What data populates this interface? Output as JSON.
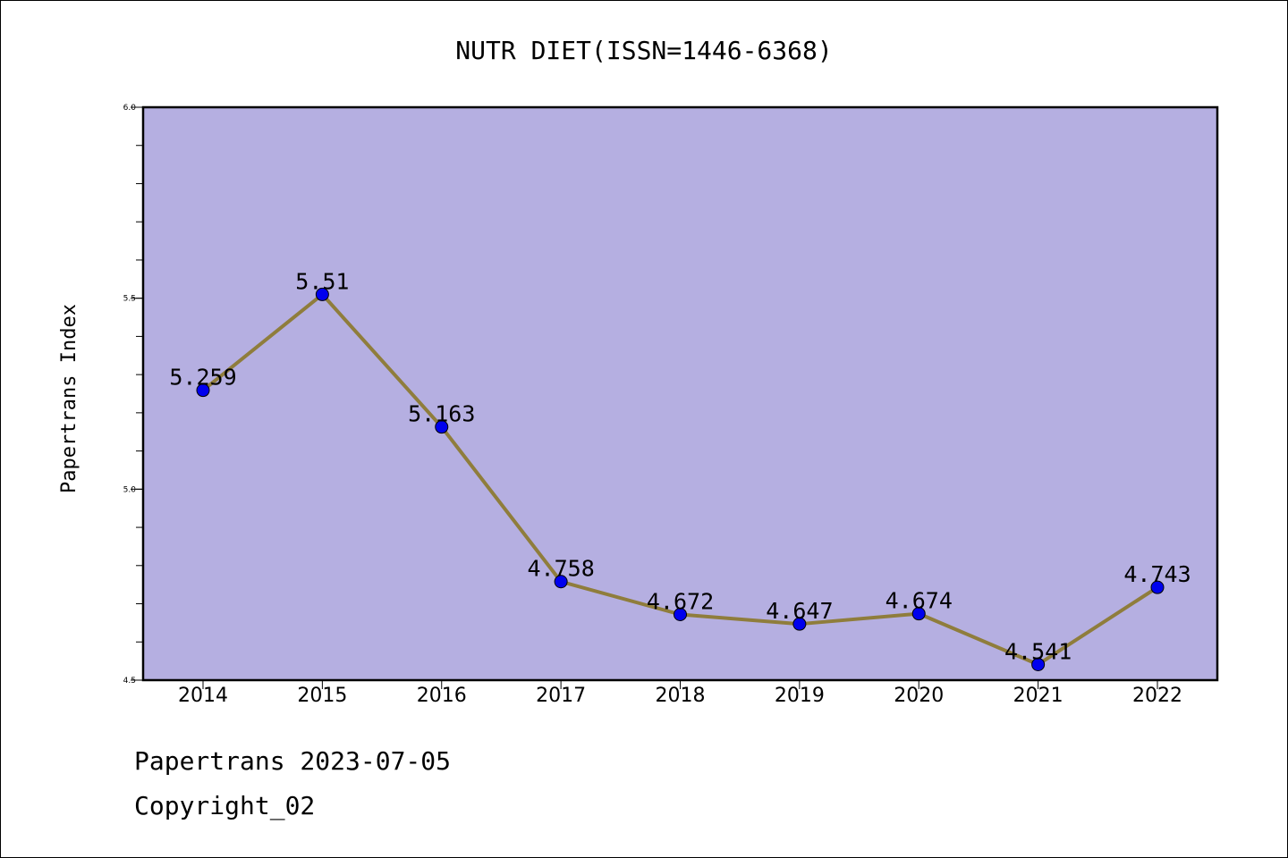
{
  "chart_data": {
    "type": "line",
    "title": "NUTR DIET(ISSN=1446-6368)",
    "ylabel": "Papertrans Index",
    "xlabel": "",
    "categories": [
      "2014",
      "2015",
      "2016",
      "2017",
      "2018",
      "2019",
      "2020",
      "2021",
      "2022"
    ],
    "values": [
      5.259,
      5.51,
      5.163,
      4.758,
      4.672,
      4.647,
      4.674,
      4.541,
      4.743
    ],
    "value_labels": [
      "5.259",
      "5.51",
      "5.163",
      "4.758",
      "4.672",
      "4.647",
      "4.674",
      "4.541",
      "4.743"
    ],
    "ylim": [
      4.5,
      6.0
    ],
    "yticks": [
      "4.5",
      "5.0",
      "5.5",
      "6.0"
    ],
    "grid": false,
    "colors": {
      "plot_background": "#b5afe1",
      "line": "#8f7d3c",
      "marker": "#0000ee"
    }
  },
  "footer": {
    "line1": "Papertrans 2023-07-05",
    "line2": "Copyright_02"
  }
}
